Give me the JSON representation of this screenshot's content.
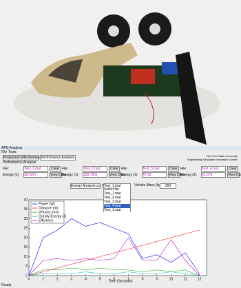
{
  "window": {
    "title": "APO Analysis",
    "menu": [
      "File",
      "Tools"
    ]
  },
  "tabs": [
    "Propulsion Effectiveness",
    "Performance Analysis"
  ],
  "institution": [
    "The Ohio State University",
    "Engineering Education Innovation Center"
  ],
  "section_title": "Performance Analysis",
  "files": [
    {
      "file_label": "File:",
      "file": "Test_1.mat",
      "clear": "Clear",
      "energy_label": "Energy (J):",
      "energy": "38.0307",
      "view": "View Data"
    },
    {
      "file_label": "File:",
      "file": "Test_2.mat",
      "clear": "Clear",
      "energy_label": "Energy (J):",
      "energy": "130.7061",
      "view": "View Data"
    },
    {
      "file_label": "File:",
      "file": "Test_3.mat",
      "clear": "Clear",
      "energy_label": "Energy (J):",
      "energy": "47.93",
      "view": "View Data"
    },
    {
      "file_label": "File:",
      "file": "Test_4.mat",
      "clear": "Clear",
      "energy_label": "Energy (J):",
      "energy": "51.073",
      "view": "View Data"
    }
  ],
  "analysis_select": "Energy Analysis vs. Tim",
  "file_select": {
    "value": "Test_1.mat",
    "options": [
      "Select file",
      "Test_1.mat",
      "Test_2.mat",
      "Test_3.mat",
      "Test_4.mat",
      "Test_1.mat"
    ],
    "highlighted": 4
  },
  "mass_label": "Vehicle Mass (kg):",
  "mass": "250",
  "plot": {
    "type": "line",
    "x_label": "Time (Seconds)",
    "x": [
      0,
      1,
      2,
      3,
      4,
      5,
      6,
      7,
      8,
      9,
      10,
      11,
      12
    ],
    "xlim": [
      0,
      12.5
    ],
    "xticks": [
      0,
      1,
      2,
      3,
      4,
      5,
      6,
      7,
      8,
      9,
      10,
      11,
      12
    ],
    "ylim": [
      0,
      40
    ],
    "yticks": [
      0,
      5,
      10,
      15,
      20,
      25,
      30,
      35,
      40
    ],
    "series": [
      {
        "name": "Power (W)",
        "color": "#0000ff",
        "values": [
          0,
          20,
          24,
          30,
          26,
          28,
          25,
          22,
          9,
          11,
          7,
          12,
          1
        ]
      },
      {
        "name": "Distance (m)",
        "color": "#ff0000",
        "values": [
          0,
          2,
          4,
          6,
          8,
          10,
          12,
          14,
          16,
          18,
          20,
          22,
          24
        ]
      },
      {
        "name": "Velocity (m/s)",
        "color": "#00a000",
        "values": [
          0,
          3,
          3,
          4,
          3,
          4,
          3,
          3,
          2,
          3,
          2,
          3,
          0
        ]
      },
      {
        "name": "Gravity Energy (J)",
        "color": "#00bfbf",
        "values": [
          0,
          1,
          1,
          1,
          2,
          1,
          1,
          2,
          1,
          1,
          2,
          1,
          0
        ]
      },
      {
        "name": "Efficiency",
        "color": "#bf00bf",
        "values": [
          0,
          8,
          9,
          8,
          9,
          8,
          9,
          20,
          8,
          8,
          19,
          8,
          0
        ]
      }
    ]
  },
  "status": "Ready"
}
